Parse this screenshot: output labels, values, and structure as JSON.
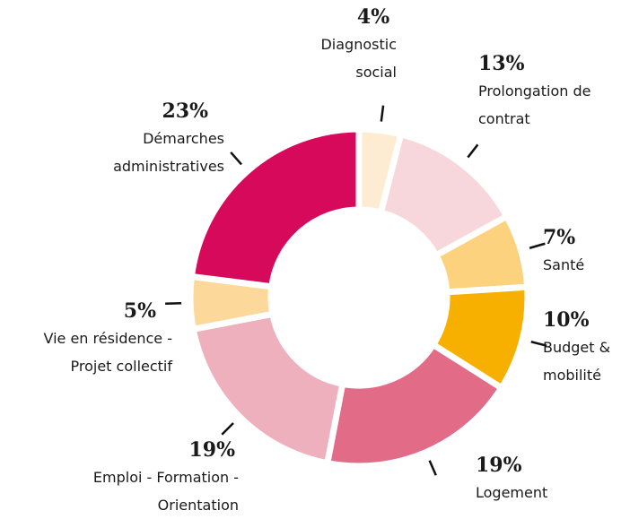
{
  "chart_data": {
    "type": "donut",
    "categories": [
      "Diagnostic social",
      "Prolongation de contrat",
      "Santé",
      "Budget & mobilité",
      "Logement",
      "Emploi - Formation - Orientation",
      "Vie en résidence - Projet collectif",
      "Démarches administratives"
    ],
    "values": [
      4,
      13,
      7,
      10,
      19,
      19,
      5,
      23
    ],
    "value_labels": [
      "4%",
      "13%",
      "7%",
      "10%",
      "19%",
      "19%",
      "5%",
      "23%"
    ],
    "colors": [
      "#fdecd2",
      "#f8d7dc",
      "#fdd27f",
      "#f8b000",
      "#e26b87",
      "#efb0bd",
      "#fcd99a",
      "#d6095a"
    ]
  }
}
